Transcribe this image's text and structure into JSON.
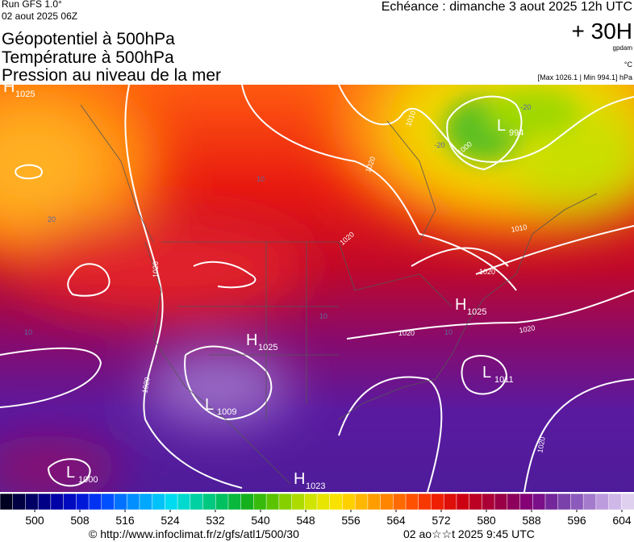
{
  "header": {
    "run": "Run GFS 1.0°",
    "run_date": "02 aout 2025 06Z",
    "echeance": "Echéance : dimanche 3 aout 2025 12h UTC",
    "lead": "+ 30H",
    "unit_geo": "gpdam",
    "unit_temp": "°C",
    "pressure_range": "[Max 1026.1 | Min 994.1] hPa",
    "titles": [
      "Géopotentiel à 500hPa",
      "Température à 500hPa",
      "Pression au niveau de la mer"
    ]
  },
  "map": {
    "centers": [
      {
        "letter": "H",
        "value": "1025"
      },
      {
        "letter": "H",
        "value": "1025"
      },
      {
        "letter": "H",
        "value": "1025"
      },
      {
        "letter": "L",
        "value": "1011"
      },
      {
        "letter": "L",
        "value": "1009"
      },
      {
        "letter": "L",
        "value": "1000"
      },
      {
        "letter": "H",
        "value": "1023"
      },
      {
        "letter": "L",
        "value": "994"
      }
    ],
    "contour_labels": [
      "1020",
      "1010",
      "1000",
      "1020",
      "1010",
      "1020",
      "1020",
      "1020",
      "1020",
      "1020",
      "1020"
    ],
    "temperature_labels": [
      "20",
      "10",
      "10",
      "10",
      "10",
      "-20",
      "-20"
    ]
  },
  "colorbar": {
    "ticks": [
      500,
      508,
      516,
      524,
      532,
      540,
      548,
      556,
      564,
      572,
      580,
      588,
      596,
      604
    ]
  },
  "footer": {
    "source": "© http://www.infoclimat.fr/z/gfs/atl1/500/30",
    "timestamp": "02 ao☆☆t 2025  9:45 UTC"
  }
}
